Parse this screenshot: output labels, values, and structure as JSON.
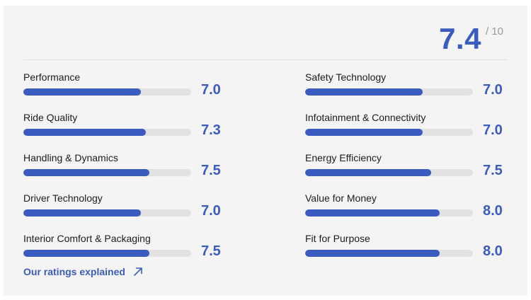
{
  "overall": {
    "score": "7.4",
    "max_label": "/ 10"
  },
  "ratings_left": [
    {
      "label": "Performance",
      "value": "7.0",
      "fraction": 0.7
    },
    {
      "label": "Ride Quality",
      "value": "7.3",
      "fraction": 0.73
    },
    {
      "label": "Handling & Dynamics",
      "value": "7.5",
      "fraction": 0.75
    },
    {
      "label": "Driver Technology",
      "value": "7.0",
      "fraction": 0.7
    },
    {
      "label": "Interior Comfort & Packaging",
      "value": "7.5",
      "fraction": 0.75
    }
  ],
  "ratings_right": [
    {
      "label": "Safety Technology",
      "value": "7.0",
      "fraction": 0.7
    },
    {
      "label": "Infotainment & Connectivity",
      "value": "7.0",
      "fraction": 0.7
    },
    {
      "label": "Energy Efficiency",
      "value": "7.5",
      "fraction": 0.75
    },
    {
      "label": "Value for Money",
      "value": "8.0",
      "fraction": 0.8
    },
    {
      "label": "Fit for Purpose",
      "value": "8.0",
      "fraction": 0.8
    }
  ],
  "link": {
    "label": "Our ratings explained",
    "icon": "arrow-up-right-icon"
  },
  "colors": {
    "accent": "#3a5bbf",
    "track": "#e2e2e2",
    "card_bg": "#f4f4f4"
  }
}
